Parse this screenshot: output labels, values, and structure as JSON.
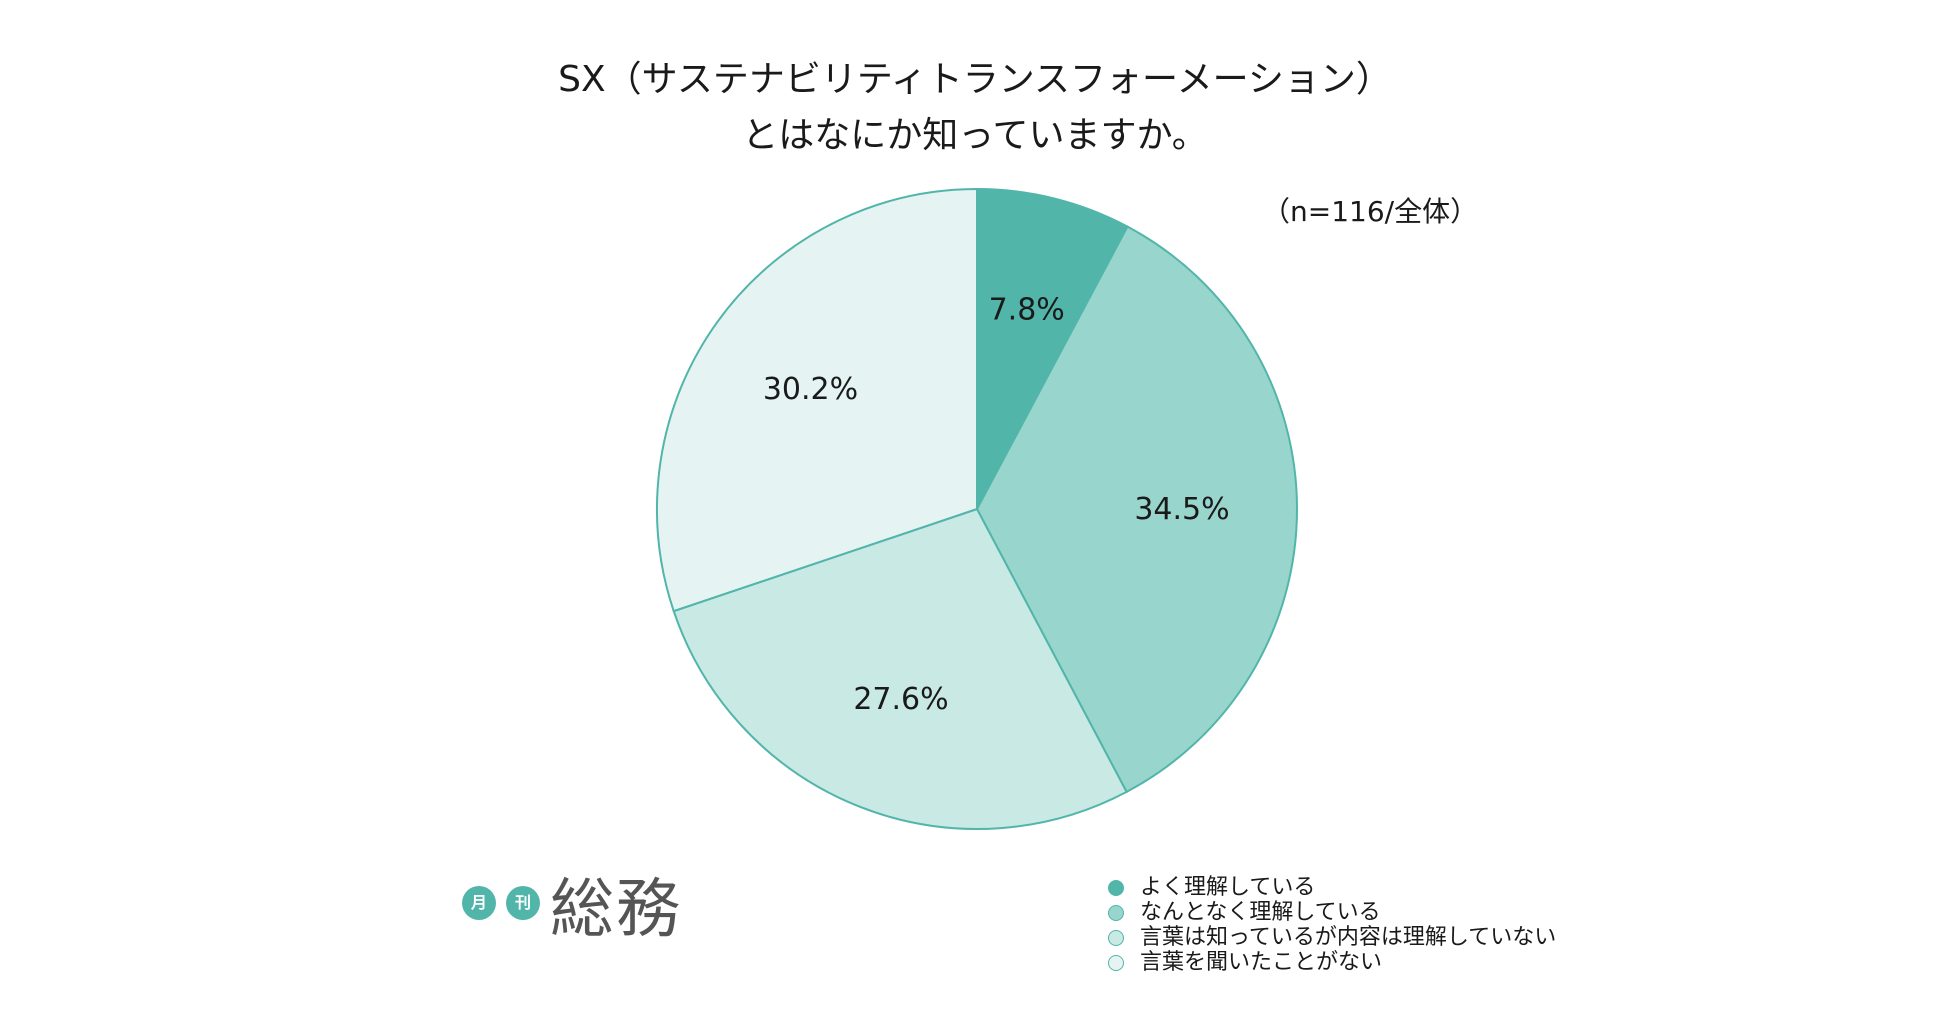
{
  "title": {
    "line1": "SX（サステナビリティトランスフォーメーション）",
    "line2": "とはなにか知っていますか。"
  },
  "sample_note": "（n=116/全体）",
  "colors": {
    "stroke": "#52b5aa",
    "slices": [
      "#52b5aa",
      "#98d5cc",
      "#c8e9e4",
      "#e5f4f2"
    ]
  },
  "chart_data": {
    "type": "pie",
    "categories": [
      "よく理解している",
      "なんとなく理解している",
      "言葉は知っているが内容は理解していない",
      "言葉を聞いたことがない"
    ],
    "values": [
      7.8,
      34.5,
      27.6,
      30.2
    ],
    "labels": [
      "7.8%",
      "34.5%",
      "27.6%",
      "30.2%"
    ],
    "legend_position": "bottom-right"
  },
  "logo": {
    "badge1": "月",
    "badge2": "刊",
    "name": "総務"
  }
}
